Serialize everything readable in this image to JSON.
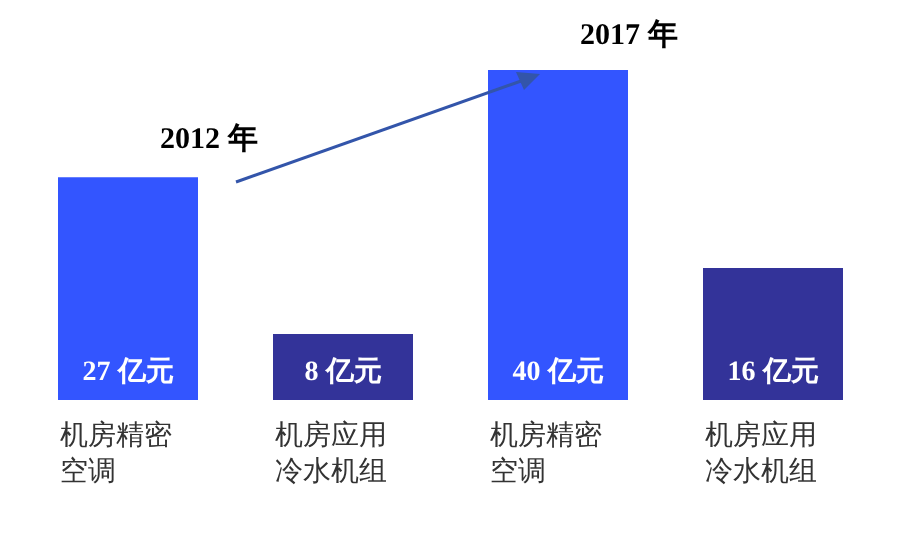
{
  "chart_data": {
    "type": "bar",
    "categories": [
      "机房精密空调",
      "机房应用冷水机组",
      "机房精密空调",
      "机房应用冷水机组"
    ],
    "values": [
      27,
      8,
      40,
      16
    ],
    "colors": [
      "#3355ff",
      "#333399",
      "#3355ff",
      "#333399"
    ],
    "value_labels": [
      "27 亿元",
      "8 亿元",
      "40 亿元",
      "16 亿元"
    ],
    "annotations": [
      "2012 年",
      "2017 年"
    ],
    "grid": false,
    "legend": false
  }
}
